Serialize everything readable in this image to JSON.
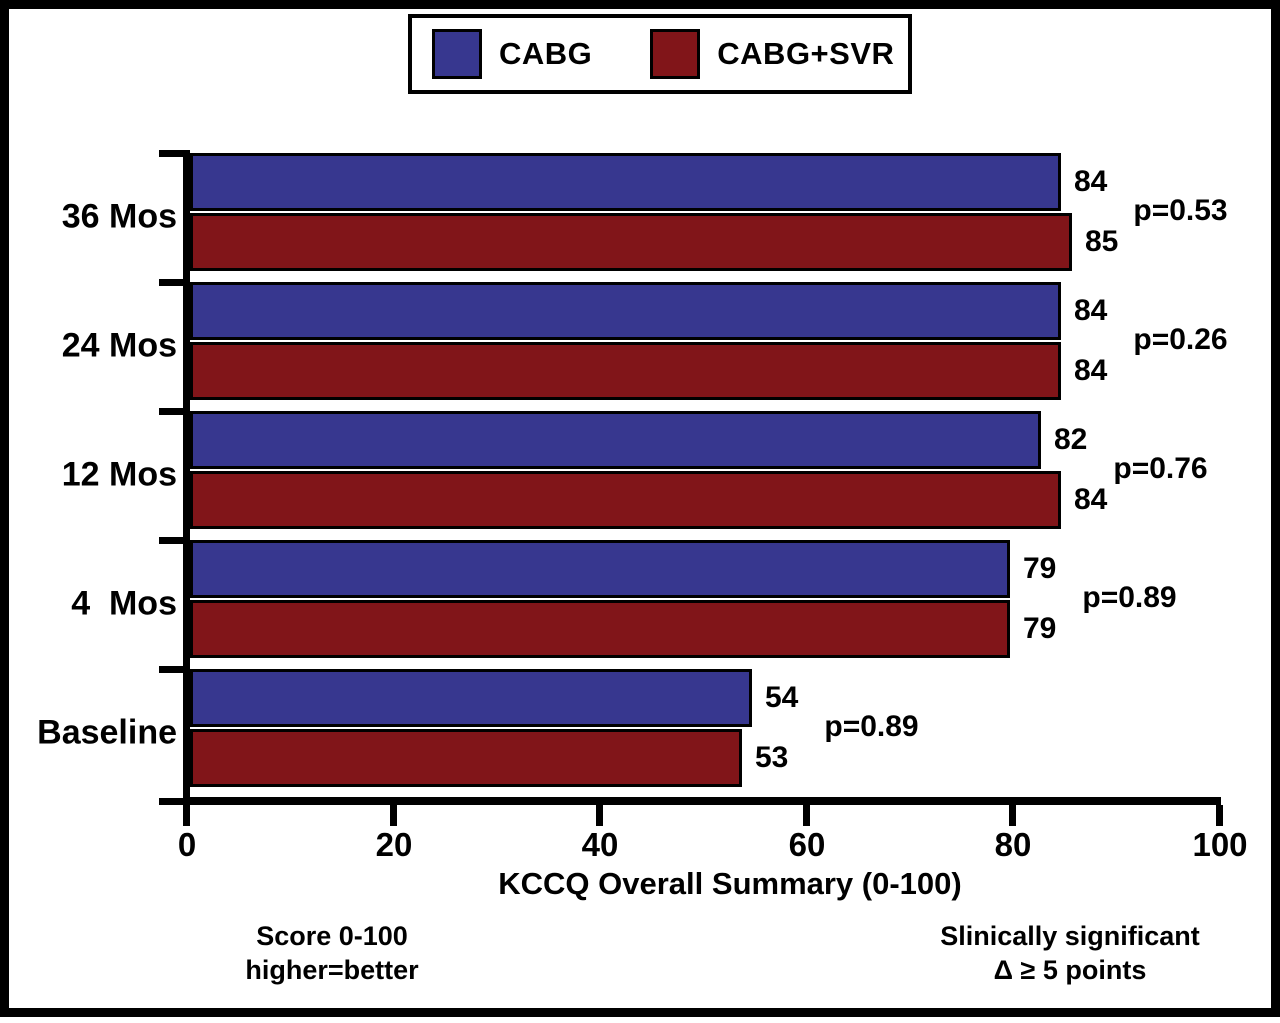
{
  "legend": {
    "items": [
      {
        "label": "CABG",
        "color": "#37378f"
      },
      {
        "label": "CABG+SVR",
        "color": "#811519"
      }
    ]
  },
  "chart_data": {
    "type": "bar",
    "orientation": "horizontal",
    "title": "",
    "xlabel": "KCCQ Overall Summary (0-100)",
    "ylabel": "",
    "xlim": [
      0,
      100
    ],
    "x_ticks": [
      "0",
      "20",
      "40",
      "60",
      "80",
      "100"
    ],
    "grid": false,
    "legend_position": "top-center",
    "categories": [
      "36 Mos",
      "24 Mos",
      "12 Mos",
      "4  Mos",
      "Baseline"
    ],
    "series": [
      {
        "name": "CABG",
        "color": "#37378f",
        "values": [
          84,
          84,
          82,
          79,
          54
        ]
      },
      {
        "name": "CABG+SVR",
        "color": "#811519",
        "values": [
          85,
          84,
          84,
          79,
          53
        ]
      }
    ],
    "p_values": [
      "p=0.53",
      "p=0.26",
      "p=0.76",
      "p=0.89",
      "p=0.89"
    ],
    "groups": [
      {
        "category": "36 Mos",
        "cabg": 84,
        "cabg_svr": 85,
        "p": "p=0.53"
      },
      {
        "category": "24 Mos",
        "cabg": 84,
        "cabg_svr": 84,
        "p": "p=0.26"
      },
      {
        "category": "12 Mos",
        "cabg": 82,
        "cabg_svr": 84,
        "p": "p=0.76"
      },
      {
        "category": "4  Mos",
        "cabg": 79,
        "cabg_svr": 79,
        "p": "p=0.89"
      },
      {
        "category": "Baseline",
        "cabg": 54,
        "cabg_svr": 53,
        "p": "p=0.89"
      }
    ]
  },
  "footnotes": {
    "left_line1": "Score 0-100",
    "left_line2": "higher=better",
    "right_line1": "Slinically significant",
    "right_line2": "Δ ≥ 5 points"
  }
}
